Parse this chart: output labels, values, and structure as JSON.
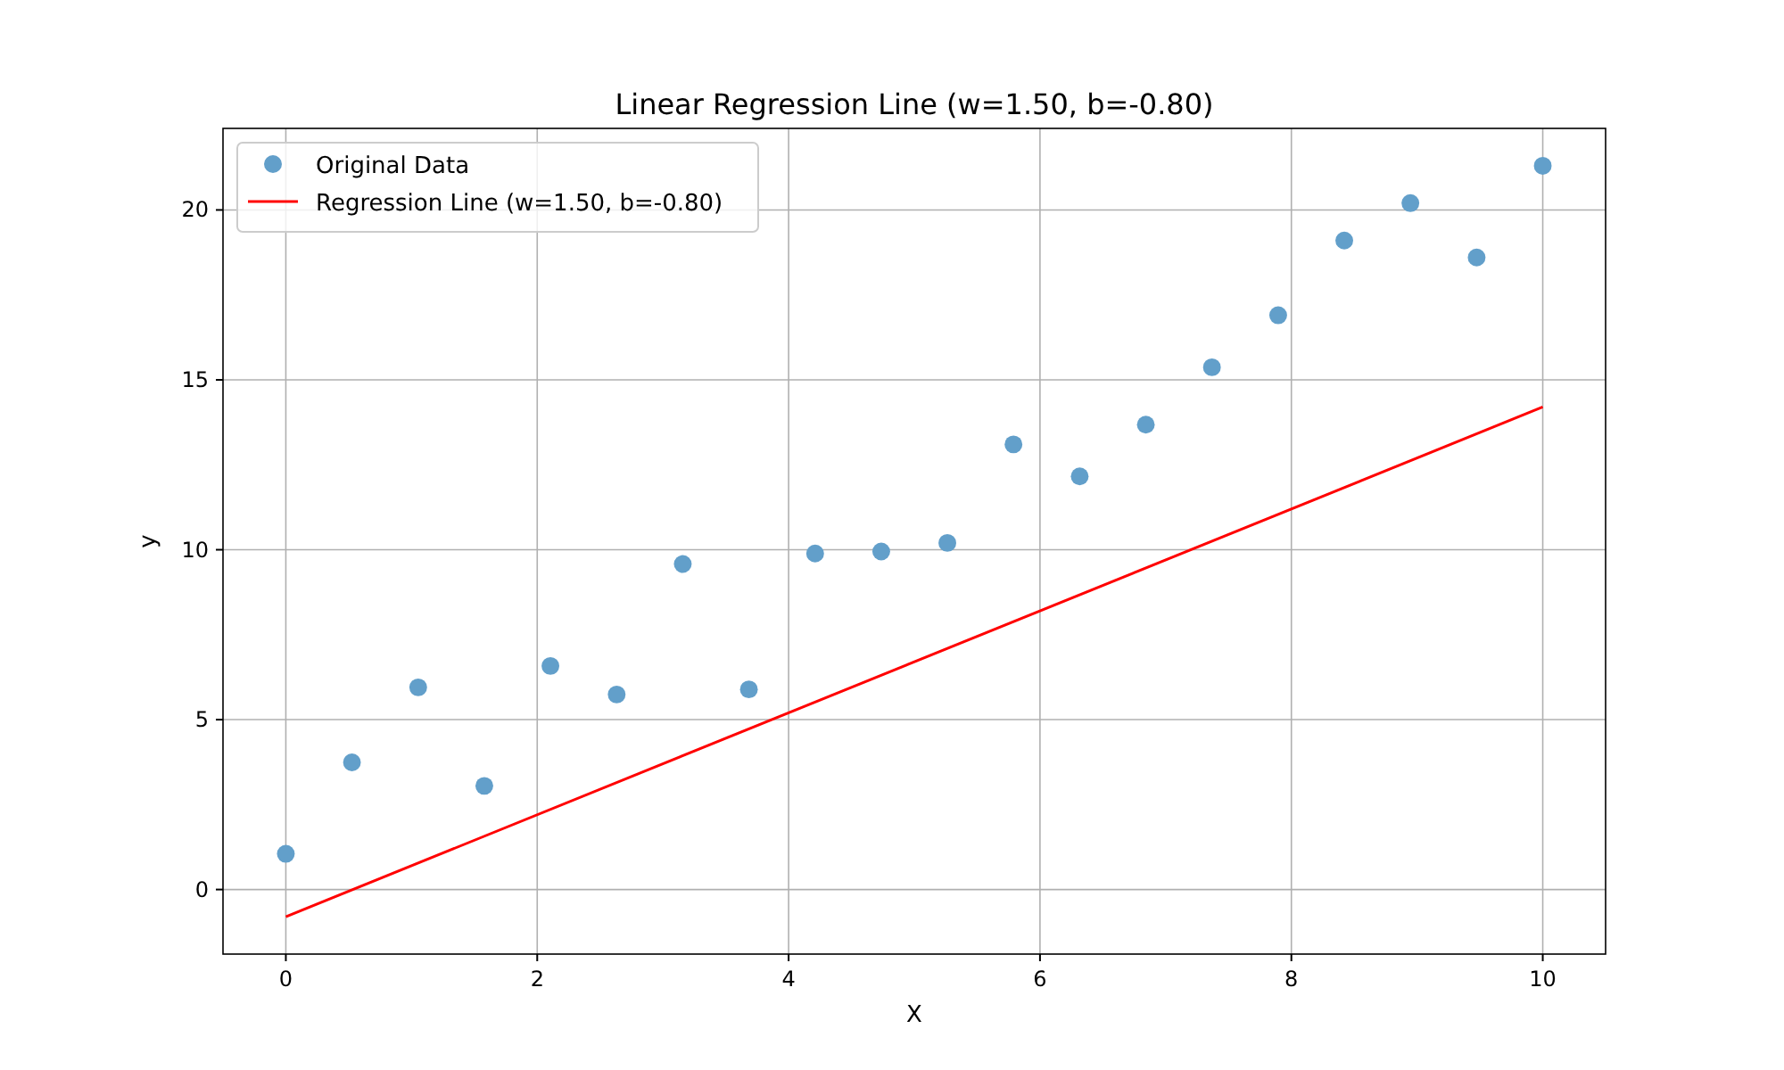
{
  "chart_data": {
    "type": "scatter",
    "title": "Linear Regression Line (w=1.50, b=-0.80)",
    "xlabel": "X",
    "ylabel": "y",
    "xlim": [
      -0.5,
      10.5
    ],
    "xticks": [
      0,
      2,
      4,
      6,
      8,
      10
    ],
    "ylim": [
      -1.9,
      22.4
    ],
    "yticks": [
      0,
      5,
      10,
      15,
      20
    ],
    "grid": true,
    "legend": "top left",
    "series": [
      {
        "name": "Original Data",
        "marker": "circle",
        "color": "#629fca",
        "x": [
          0,
          0.526,
          1.053,
          1.579,
          2.105,
          2.632,
          3.158,
          3.684,
          4.211,
          4.737,
          5.263,
          5.789,
          6.316,
          6.842,
          7.368,
          7.895,
          8.421,
          8.947,
          9.474,
          10
        ],
        "values": [
          1.05,
          3.74,
          5.95,
          3.05,
          6.58,
          5.74,
          9.58,
          5.89,
          9.89,
          9.95,
          10.2,
          13.1,
          12.16,
          13.68,
          15.37,
          16.9,
          19.1,
          20.2,
          18.6,
          21.3
        ]
      },
      {
        "name": "Regression Line (w=1.50, b=-0.80)",
        "type": "line",
        "marker": "none",
        "line_style": "solid",
        "color": "#ff0000",
        "x": [
          0,
          10
        ],
        "values": [
          -0.8,
          14.2
        ]
      }
    ]
  }
}
